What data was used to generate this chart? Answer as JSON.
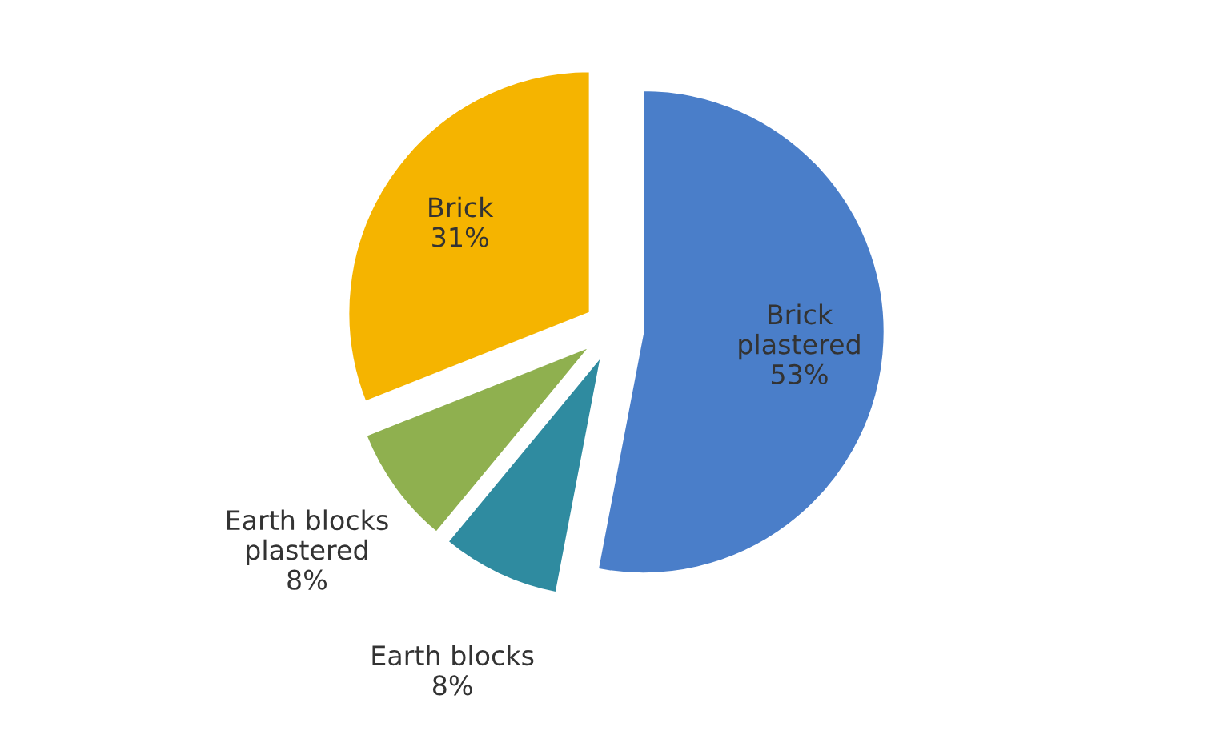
{
  "chart_data": {
    "type": "pie",
    "categories": [
      "Brick plastered",
      "Earth blocks",
      "Earth blocks plastered",
      "Brick"
    ],
    "values": [
      53,
      8,
      8,
      31
    ],
    "value_labels": [
      "53%",
      "8%",
      "8%",
      "31%"
    ],
    "colors": [
      "#4a7ec9",
      "#2f8ba0",
      "#8fb04f",
      "#f5b400"
    ]
  }
}
